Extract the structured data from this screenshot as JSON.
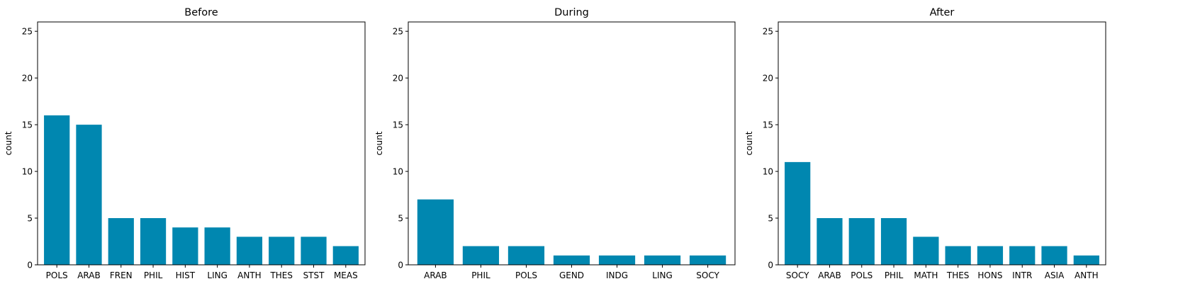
{
  "chart_data": [
    {
      "type": "bar",
      "title": "Before",
      "ylabel": "count",
      "xlabel": "",
      "ylim": [
        0,
        26
      ],
      "yticks": [
        0,
        5,
        10,
        15,
        20,
        25
      ],
      "color": "#0087b0",
      "categories": [
        "POLS",
        "ARAB",
        "FREN",
        "PHIL",
        "HIST",
        "LING",
        "ANTH",
        "THES",
        "STST",
        "MEAS"
      ],
      "values": [
        16,
        15,
        5,
        5,
        4,
        4,
        3,
        3,
        3,
        2
      ]
    },
    {
      "type": "bar",
      "title": "During",
      "ylabel": "count",
      "xlabel": "",
      "ylim": [
        0,
        26
      ],
      "yticks": [
        0,
        5,
        10,
        15,
        20,
        25
      ],
      "color": "#0087b0",
      "categories": [
        "ARAB",
        "PHIL",
        "POLS",
        "GEND",
        "INDG",
        "LING",
        "SOCY"
      ],
      "values": [
        7,
        2,
        2,
        1,
        1,
        1,
        1
      ]
    },
    {
      "type": "bar",
      "title": "After",
      "ylabel": "count",
      "xlabel": "",
      "ylim": [
        0,
        26
      ],
      "yticks": [
        0,
        5,
        10,
        15,
        20,
        25
      ],
      "color": "#0087b0",
      "categories": [
        "SOCY",
        "ARAB",
        "POLS",
        "PHIL",
        "MATH",
        "THES",
        "HONS",
        "INTR",
        "ASIA",
        "ANTH"
      ],
      "values": [
        11,
        5,
        5,
        5,
        3,
        2,
        2,
        2,
        2,
        1
      ]
    }
  ]
}
